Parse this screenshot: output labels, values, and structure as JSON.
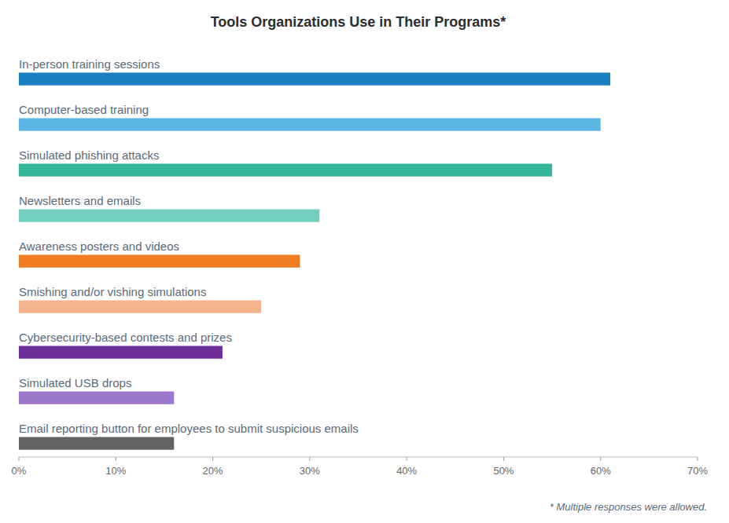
{
  "chart_data": {
    "type": "bar",
    "orientation": "horizontal",
    "title": "Tools Organizations Use in Their Programs*",
    "annotations": [
      "* Multiple responses were allowed."
    ],
    "categories": [
      "In-person training sessions",
      "Computer-based training",
      "Simulated phishing attacks",
      "Newsletters and emails",
      "Awareness posters and videos",
      "Smishing and/or vishing simulations",
      "Cybersecurity-based contests and prizes",
      "Simulated USB drops",
      "Email reporting button for employees to submit suspicious emails"
    ],
    "values": [
      61,
      60,
      55,
      31,
      29,
      25,
      21,
      16,
      16
    ],
    "colors": [
      "#1a7fc1",
      "#5ab5e2",
      "#35b89a",
      "#72cfc0",
      "#f07d22",
      "#f5b48c",
      "#6b2e99",
      "#9b78cc",
      "#636363"
    ],
    "xlim": [
      0,
      70
    ],
    "xticks": [
      {
        "value": 0,
        "label": "0%"
      },
      {
        "value": 10,
        "label": "10%"
      },
      {
        "value": 20,
        "label": "20%"
      },
      {
        "value": 30,
        "label": "30%"
      },
      {
        "value": 40,
        "label": "40%"
      },
      {
        "value": 50,
        "label": "50%"
      },
      {
        "value": 60,
        "label": "60%"
      },
      {
        "value": 70,
        "label": "70%"
      }
    ],
    "grid": false
  }
}
